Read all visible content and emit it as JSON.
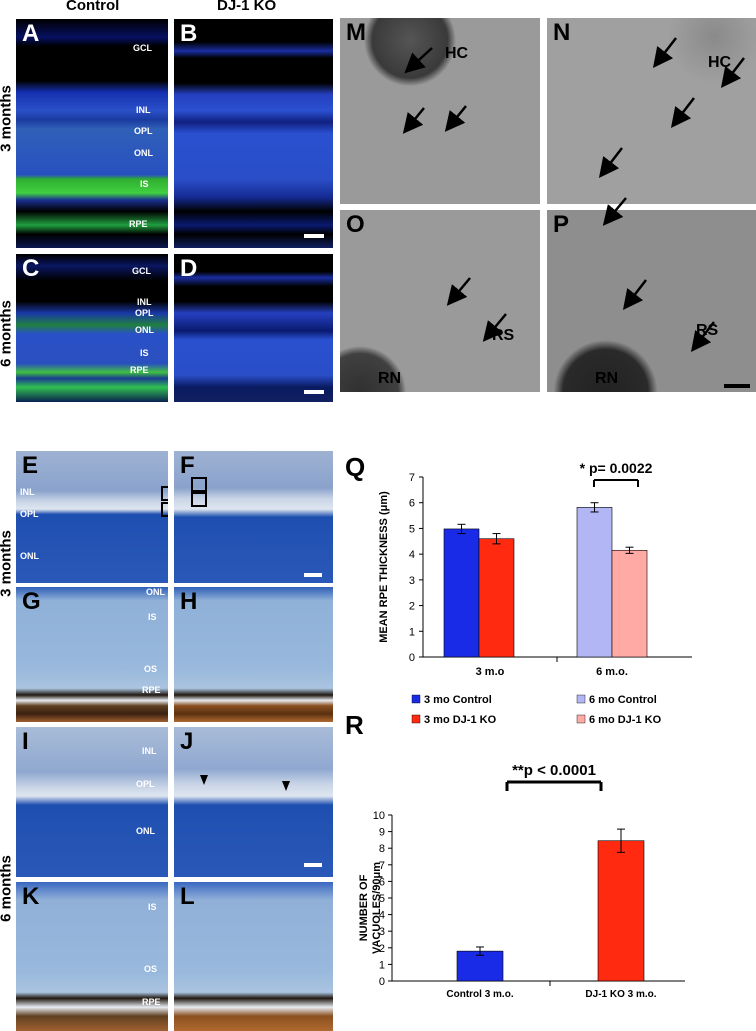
{
  "header": {
    "control": "Control",
    "ko": "DJ-1 KO"
  },
  "row_labels": {
    "r1": "3 months",
    "r2": "6 months",
    "r3": "3 months",
    "r4": "6 months"
  },
  "panels": {
    "A": "A",
    "B": "B",
    "C": "C",
    "D": "D",
    "E": "E",
    "F": "F",
    "G": "G",
    "H": "H",
    "I": "I",
    "J": "J",
    "K": "K",
    "L": "L",
    "M": "M",
    "N": "N",
    "O": "O",
    "P": "P",
    "Q": "Q",
    "R": "R"
  },
  "layers": {
    "gcl": "GCL",
    "inl": "INL",
    "opl": "OPL",
    "onl": "ONL",
    "is": "IS",
    "rpe": "RPE",
    "os": "OS"
  },
  "em_labels": {
    "hc": "HC",
    "rs": "RS",
    "rn": "RN"
  },
  "chart_data": [
    {
      "type": "bar",
      "categories": [
        "3 m.o",
        "6 m.o."
      ],
      "series": [
        {
          "name": "3 mo Control",
          "color": "#1a2be8",
          "values": [
            4.98,
            null
          ],
          "err": [
            0.18,
            null
          ]
        },
        {
          "name": "3 mo DJ-1 KO",
          "color": "#ff2a10",
          "values": [
            4.6,
            null
          ],
          "err": [
            0.2,
            null
          ]
        },
        {
          "name": "6 mo Control",
          "color": "#b3b6f5",
          "values": [
            null,
            5.82
          ],
          "err": [
            null,
            0.18
          ]
        },
        {
          "name": "6 mo DJ-1 KO",
          "color": "#ffaaa5",
          "values": [
            null,
            4.15
          ],
          "err": [
            null,
            0.12
          ]
        }
      ],
      "ylabel": "MEAN RPE THICKNESS (μm)",
      "ylim": [
        0,
        7
      ],
      "yticks": [
        "0",
        "1",
        "2",
        "3",
        "4",
        "5",
        "6",
        "7"
      ],
      "annotation": "* p= 0.0022",
      "legend_placement": "bottom"
    },
    {
      "type": "bar",
      "categories": [
        "Control 3 m.o.",
        "DJ-1 KO 3 m.o."
      ],
      "values": [
        1.8,
        8.45
      ],
      "err": [
        0.25,
        0.7
      ],
      "colors": [
        "#1a2be8",
        "#ff2a10"
      ],
      "ylabel": "NUMBER OF VACUOLES/90μm",
      "ylim": [
        0,
        10
      ],
      "yticks": [
        "0",
        "1",
        "2",
        "3",
        "4",
        "5",
        "6",
        "7",
        "8",
        "9",
        "10"
      ],
      "annotation": "**p  < 0.0001"
    }
  ]
}
